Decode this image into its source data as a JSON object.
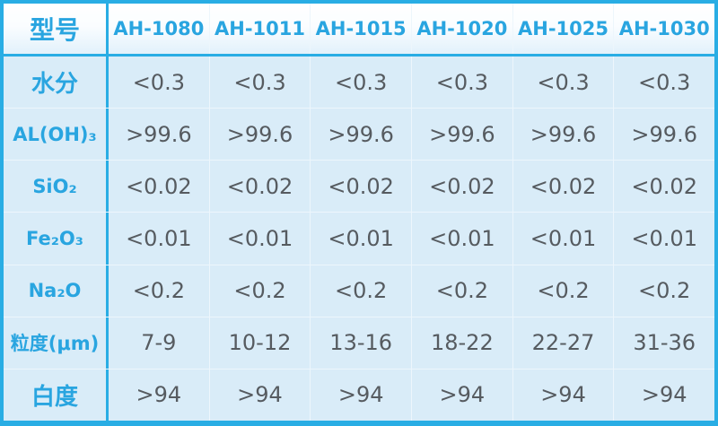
{
  "table": {
    "header": {
      "corner": "型号",
      "models": [
        "AH-1080",
        "AH-1011",
        "AH-1015",
        "AH-1020",
        "AH-1025",
        "AH-1030"
      ]
    },
    "rows": [
      {
        "label": "水分",
        "values": [
          "<0.3",
          "<0.3",
          "<0.3",
          "<0.3",
          "<0.3",
          "<0.3"
        ]
      },
      {
        "label": "AL(OH)₃",
        "values": [
          ">99.6",
          ">99.6",
          ">99.6",
          ">99.6",
          ">99.6",
          ">99.6"
        ]
      },
      {
        "label": "SiO₂",
        "values": [
          "<0.02",
          "<0.02",
          "<0.02",
          "<0.02",
          "<0.02",
          "<0.02"
        ]
      },
      {
        "label": "Fe₂O₃",
        "values": [
          "<0.01",
          "<0.01",
          "<0.01",
          "<0.01",
          "<0.01",
          "<0.01"
        ]
      },
      {
        "label": "Na₂O",
        "values": [
          "<0.2",
          "<0.2",
          "<0.2",
          "<0.2",
          "<0.2",
          "<0.2"
        ]
      },
      {
        "label": "粒度(μm)",
        "values": [
          "7-9",
          "10-12",
          "13-16",
          "18-22",
          "22-27",
          "31-36"
        ]
      },
      {
        "label": "白度",
        "values": [
          ">94",
          ">94",
          ">94",
          ">94",
          ">94",
          ">94"
        ]
      }
    ],
    "colors": {
      "accent_border": "#29ade4",
      "header_text": "#29a5e0",
      "label_text": "#29a5e0",
      "value_text": "#565b60",
      "row_background": "#d9ecf8",
      "header_background_top": "#ffffff",
      "header_background_bottom": "#e2f1fb",
      "grid_line": "#edf6fc"
    }
  },
  "chart_data": {
    "type": "table",
    "title": "",
    "columns": [
      "型号",
      "AH-1080",
      "AH-1011",
      "AH-1015",
      "AH-1020",
      "AH-1025",
      "AH-1030"
    ],
    "rows": [
      [
        "水分",
        "<0.3",
        "<0.3",
        "<0.3",
        "<0.3",
        "<0.3",
        "<0.3"
      ],
      [
        "AL(OH)₃",
        ">99.6",
        ">99.6",
        ">99.6",
        ">99.6",
        ">99.6",
        ">99.6"
      ],
      [
        "SiO₂",
        "<0.02",
        "<0.02",
        "<0.02",
        "<0.02",
        "<0.02",
        "<0.02"
      ],
      [
        "Fe₂O₃",
        "<0.01",
        "<0.01",
        "<0.01",
        "<0.01",
        "<0.01",
        "<0.01"
      ],
      [
        "Na₂O",
        "<0.2",
        "<0.2",
        "<0.2",
        "<0.2",
        "<0.2",
        "<0.2"
      ],
      [
        "粒度(μm)",
        "7-9",
        "10-12",
        "13-16",
        "18-22",
        "22-27",
        "31-36"
      ],
      [
        "白度",
        ">94",
        ">94",
        ">94",
        ">94",
        ">94",
        ">94"
      ]
    ]
  }
}
